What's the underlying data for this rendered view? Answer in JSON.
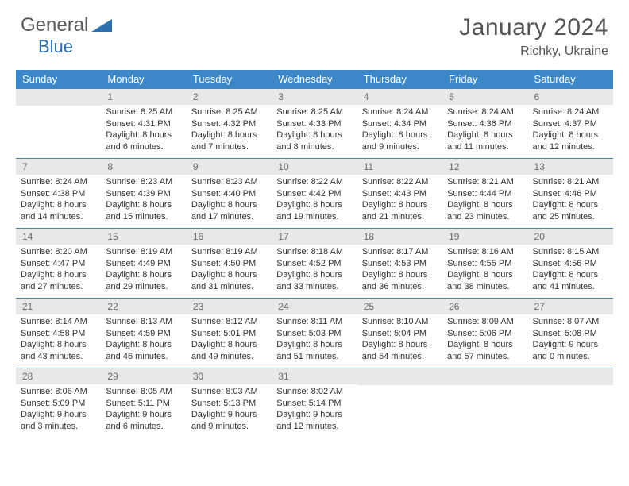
{
  "brand": {
    "part1": "General",
    "part2": "Blue"
  },
  "title": "January 2024",
  "location": "Richky, Ukraine",
  "colors": {
    "header_bg": "#3b87c8",
    "header_text": "#ffffff",
    "daynum_bg": "#e8e8e8",
    "daynum_text": "#6a6a6a",
    "body_text": "#333333",
    "rule": "#3b87c8",
    "logo_triangle": "#2e6fb0",
    "logo_text": "#5a5a5a"
  },
  "weekdays": [
    "Sunday",
    "Monday",
    "Tuesday",
    "Wednesday",
    "Thursday",
    "Friday",
    "Saturday"
  ],
  "weeks": [
    [
      null,
      {
        "n": "1",
        "sr": "Sunrise: 8:25 AM",
        "ss": "Sunset: 4:31 PM",
        "d1": "Daylight: 8 hours",
        "d2": "and 6 minutes."
      },
      {
        "n": "2",
        "sr": "Sunrise: 8:25 AM",
        "ss": "Sunset: 4:32 PM",
        "d1": "Daylight: 8 hours",
        "d2": "and 7 minutes."
      },
      {
        "n": "3",
        "sr": "Sunrise: 8:25 AM",
        "ss": "Sunset: 4:33 PM",
        "d1": "Daylight: 8 hours",
        "d2": "and 8 minutes."
      },
      {
        "n": "4",
        "sr": "Sunrise: 8:24 AM",
        "ss": "Sunset: 4:34 PM",
        "d1": "Daylight: 8 hours",
        "d2": "and 9 minutes."
      },
      {
        "n": "5",
        "sr": "Sunrise: 8:24 AM",
        "ss": "Sunset: 4:36 PM",
        "d1": "Daylight: 8 hours",
        "d2": "and 11 minutes."
      },
      {
        "n": "6",
        "sr": "Sunrise: 8:24 AM",
        "ss": "Sunset: 4:37 PM",
        "d1": "Daylight: 8 hours",
        "d2": "and 12 minutes."
      }
    ],
    [
      {
        "n": "7",
        "sr": "Sunrise: 8:24 AM",
        "ss": "Sunset: 4:38 PM",
        "d1": "Daylight: 8 hours",
        "d2": "and 14 minutes."
      },
      {
        "n": "8",
        "sr": "Sunrise: 8:23 AM",
        "ss": "Sunset: 4:39 PM",
        "d1": "Daylight: 8 hours",
        "d2": "and 15 minutes."
      },
      {
        "n": "9",
        "sr": "Sunrise: 8:23 AM",
        "ss": "Sunset: 4:40 PM",
        "d1": "Daylight: 8 hours",
        "d2": "and 17 minutes."
      },
      {
        "n": "10",
        "sr": "Sunrise: 8:22 AM",
        "ss": "Sunset: 4:42 PM",
        "d1": "Daylight: 8 hours",
        "d2": "and 19 minutes."
      },
      {
        "n": "11",
        "sr": "Sunrise: 8:22 AM",
        "ss": "Sunset: 4:43 PM",
        "d1": "Daylight: 8 hours",
        "d2": "and 21 minutes."
      },
      {
        "n": "12",
        "sr": "Sunrise: 8:21 AM",
        "ss": "Sunset: 4:44 PM",
        "d1": "Daylight: 8 hours",
        "d2": "and 23 minutes."
      },
      {
        "n": "13",
        "sr": "Sunrise: 8:21 AM",
        "ss": "Sunset: 4:46 PM",
        "d1": "Daylight: 8 hours",
        "d2": "and 25 minutes."
      }
    ],
    [
      {
        "n": "14",
        "sr": "Sunrise: 8:20 AM",
        "ss": "Sunset: 4:47 PM",
        "d1": "Daylight: 8 hours",
        "d2": "and 27 minutes."
      },
      {
        "n": "15",
        "sr": "Sunrise: 8:19 AM",
        "ss": "Sunset: 4:49 PM",
        "d1": "Daylight: 8 hours",
        "d2": "and 29 minutes."
      },
      {
        "n": "16",
        "sr": "Sunrise: 8:19 AM",
        "ss": "Sunset: 4:50 PM",
        "d1": "Daylight: 8 hours",
        "d2": "and 31 minutes."
      },
      {
        "n": "17",
        "sr": "Sunrise: 8:18 AM",
        "ss": "Sunset: 4:52 PM",
        "d1": "Daylight: 8 hours",
        "d2": "and 33 minutes."
      },
      {
        "n": "18",
        "sr": "Sunrise: 8:17 AM",
        "ss": "Sunset: 4:53 PM",
        "d1": "Daylight: 8 hours",
        "d2": "and 36 minutes."
      },
      {
        "n": "19",
        "sr": "Sunrise: 8:16 AM",
        "ss": "Sunset: 4:55 PM",
        "d1": "Daylight: 8 hours",
        "d2": "and 38 minutes."
      },
      {
        "n": "20",
        "sr": "Sunrise: 8:15 AM",
        "ss": "Sunset: 4:56 PM",
        "d1": "Daylight: 8 hours",
        "d2": "and 41 minutes."
      }
    ],
    [
      {
        "n": "21",
        "sr": "Sunrise: 8:14 AM",
        "ss": "Sunset: 4:58 PM",
        "d1": "Daylight: 8 hours",
        "d2": "and 43 minutes."
      },
      {
        "n": "22",
        "sr": "Sunrise: 8:13 AM",
        "ss": "Sunset: 4:59 PM",
        "d1": "Daylight: 8 hours",
        "d2": "and 46 minutes."
      },
      {
        "n": "23",
        "sr": "Sunrise: 8:12 AM",
        "ss": "Sunset: 5:01 PM",
        "d1": "Daylight: 8 hours",
        "d2": "and 49 minutes."
      },
      {
        "n": "24",
        "sr": "Sunrise: 8:11 AM",
        "ss": "Sunset: 5:03 PM",
        "d1": "Daylight: 8 hours",
        "d2": "and 51 minutes."
      },
      {
        "n": "25",
        "sr": "Sunrise: 8:10 AM",
        "ss": "Sunset: 5:04 PM",
        "d1": "Daylight: 8 hours",
        "d2": "and 54 minutes."
      },
      {
        "n": "26",
        "sr": "Sunrise: 8:09 AM",
        "ss": "Sunset: 5:06 PM",
        "d1": "Daylight: 8 hours",
        "d2": "and 57 minutes."
      },
      {
        "n": "27",
        "sr": "Sunrise: 8:07 AM",
        "ss": "Sunset: 5:08 PM",
        "d1": "Daylight: 9 hours",
        "d2": "and 0 minutes."
      }
    ],
    [
      {
        "n": "28",
        "sr": "Sunrise: 8:06 AM",
        "ss": "Sunset: 5:09 PM",
        "d1": "Daylight: 9 hours",
        "d2": "and 3 minutes."
      },
      {
        "n": "29",
        "sr": "Sunrise: 8:05 AM",
        "ss": "Sunset: 5:11 PM",
        "d1": "Daylight: 9 hours",
        "d2": "and 6 minutes."
      },
      {
        "n": "30",
        "sr": "Sunrise: 8:03 AM",
        "ss": "Sunset: 5:13 PM",
        "d1": "Daylight: 9 hours",
        "d2": "and 9 minutes."
      },
      {
        "n": "31",
        "sr": "Sunrise: 8:02 AM",
        "ss": "Sunset: 5:14 PM",
        "d1": "Daylight: 9 hours",
        "d2": "and 12 minutes."
      },
      null,
      null,
      null
    ]
  ]
}
